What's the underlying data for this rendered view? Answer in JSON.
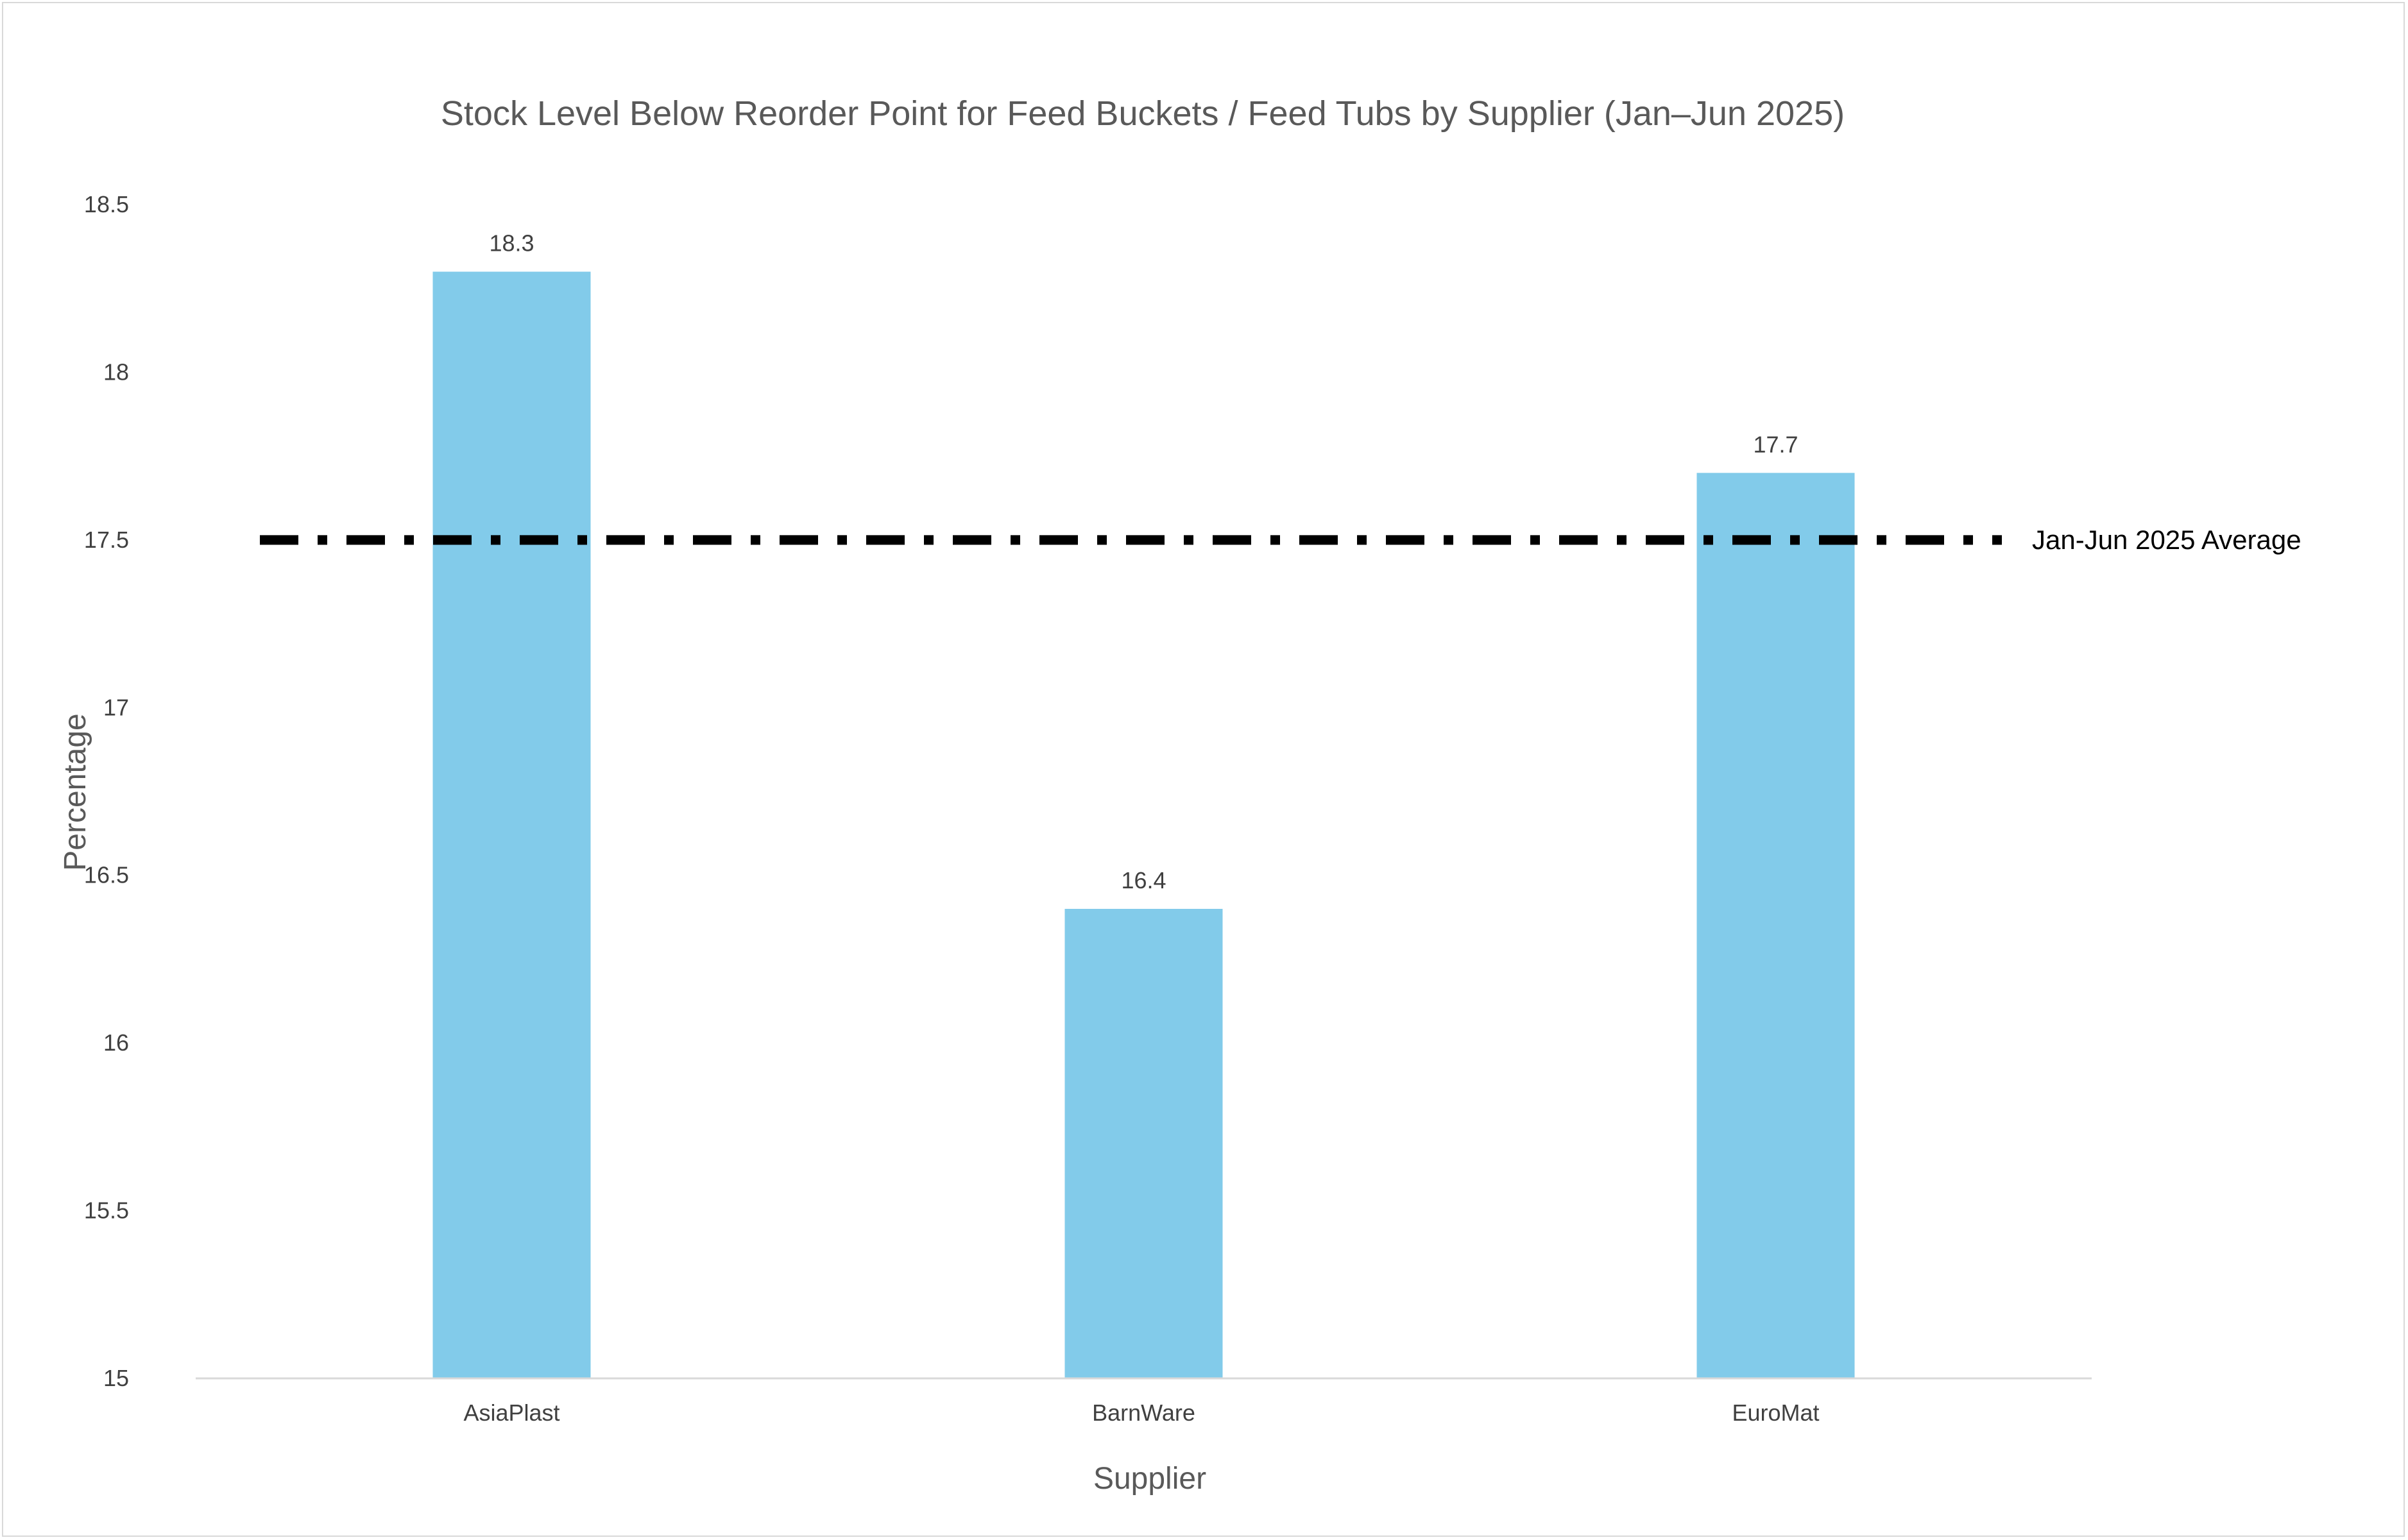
{
  "chart_data": {
    "type": "bar",
    "title": "Stock Level Below Reorder Point for Feed Buckets / Feed Tubs by Supplier (Jan–Jun 2025)",
    "xlabel": "Supplier",
    "ylabel": "Percentage",
    "categories": [
      "AsiaPlast",
      "BarnWare",
      "EuroMat"
    ],
    "values": [
      18.3,
      16.4,
      17.7
    ],
    "data_labels": [
      "18.3",
      "16.4",
      "17.7"
    ],
    "ylim": [
      15,
      18.5
    ],
    "yticks": [
      15,
      15.5,
      16,
      16.5,
      17,
      17.5,
      18,
      18.5
    ],
    "ytick_labels": [
      "15",
      "15.5",
      "16",
      "16.5",
      "17",
      "17.5",
      "18",
      "18.5"
    ],
    "grid": false,
    "legend": "none",
    "bar_color": "#82cbea",
    "reference_line": {
      "value": 17.5,
      "label": "Jan-Jun 2025 Average",
      "style": "dash-dot",
      "color": "#000000"
    }
  }
}
